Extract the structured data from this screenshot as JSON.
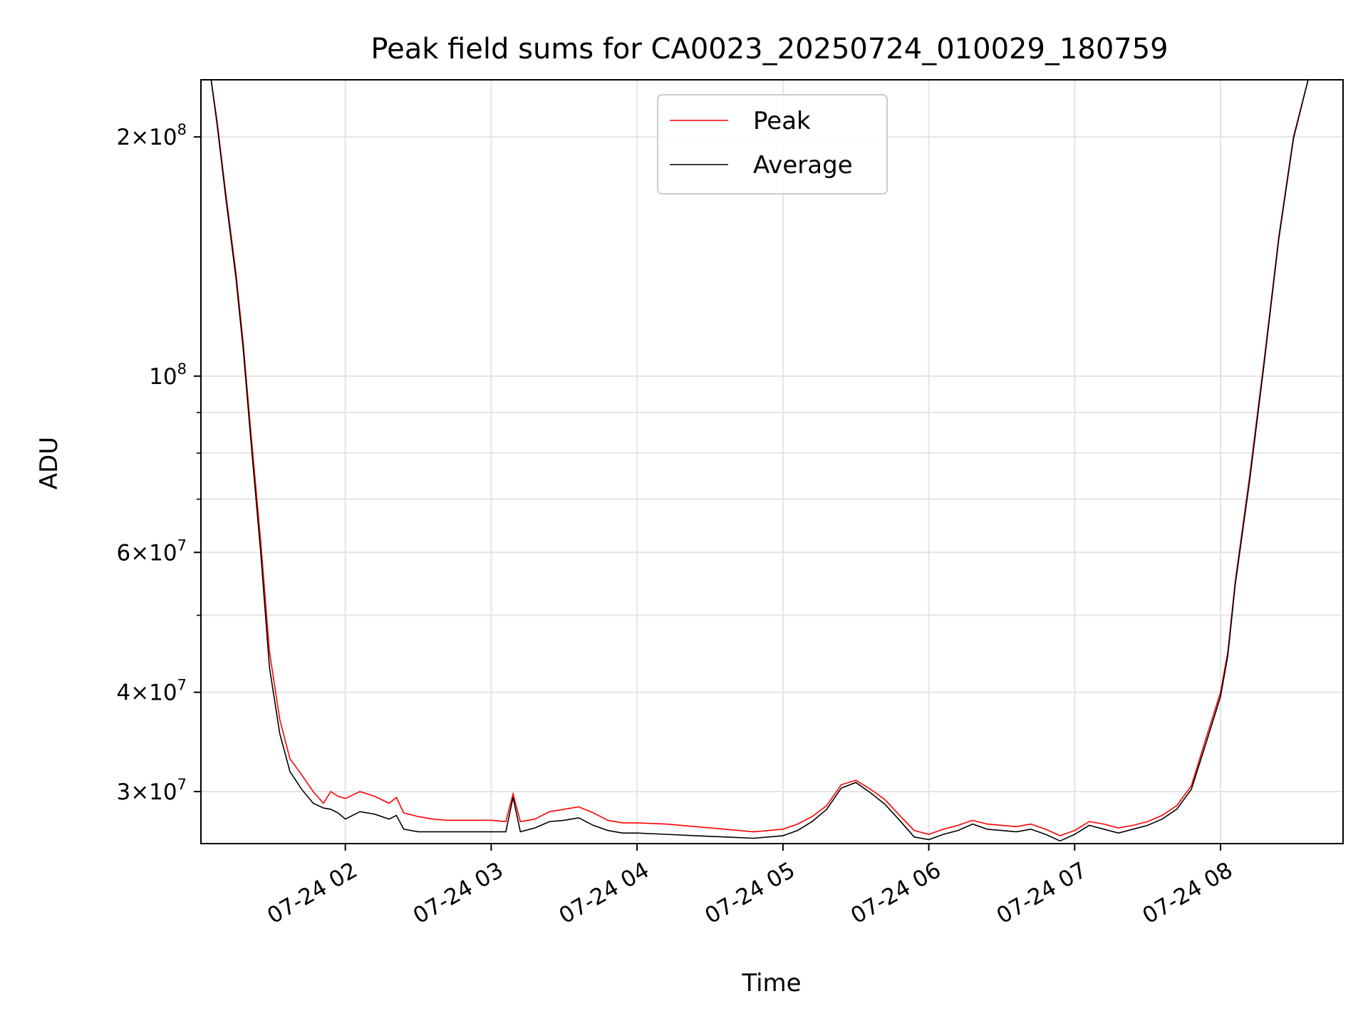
{
  "chart_data": {
    "type": "line",
    "title": "Peak field sums for CA0023_20250724_010029_180759",
    "xlabel": "Time",
    "ylabel": "ADU",
    "yscale": "log",
    "grid": true,
    "legend_position": "upper center",
    "x_ticks": [
      {
        "label": "07-24 02",
        "hour": 2.0
      },
      {
        "label": "07-24 03",
        "hour": 3.0
      },
      {
        "label": "07-24 04",
        "hour": 4.0
      },
      {
        "label": "07-24 05",
        "hour": 5.0
      },
      {
        "label": "07-24 06",
        "hour": 6.0
      },
      {
        "label": "07-24 07",
        "hour": 7.0
      },
      {
        "label": "07-24 08",
        "hour": 8.0
      }
    ],
    "y_ticks": [
      {
        "base": "3",
        "exp": "7",
        "value": 30000000
      },
      {
        "base": "4",
        "exp": "7",
        "value": 40000000
      },
      {
        "base": "6",
        "exp": "7",
        "value": 60000000
      },
      {
        "base": "",
        "exp": "8",
        "value": 100000000
      },
      {
        "base": "2",
        "exp": "8",
        "value": 200000000
      }
    ],
    "y_minor": [
      50000000,
      70000000,
      80000000,
      90000000
    ],
    "xlim": [
      1.01,
      8.84
    ],
    "ylim": [
      25800000,
      236000000
    ],
    "series": [
      {
        "name": "Peak",
        "color": "#ff0000",
        "x": [
          1.01,
          1.08,
          1.12,
          1.18,
          1.25,
          1.3,
          1.35,
          1.42,
          1.48,
          1.55,
          1.62,
          1.7,
          1.78,
          1.85,
          1.9,
          1.95,
          2.0,
          2.1,
          2.2,
          2.3,
          2.35,
          2.4,
          2.5,
          2.55,
          2.6,
          2.7,
          2.8,
          2.9,
          3.0,
          3.1,
          3.15,
          3.2,
          3.3,
          3.4,
          3.5,
          3.6,
          3.7,
          3.8,
          3.9,
          4.0,
          4.2,
          4.4,
          4.6,
          4.8,
          5.0,
          5.1,
          5.2,
          5.3,
          5.4,
          5.5,
          5.6,
          5.7,
          5.8,
          5.9,
          6.0,
          6.1,
          6.2,
          6.3,
          6.4,
          6.5,
          6.6,
          6.7,
          6.8,
          6.9,
          7.0,
          7.1,
          7.2,
          7.3,
          7.4,
          7.5,
          7.6,
          7.7,
          7.8,
          7.9,
          8.0,
          8.05,
          8.1,
          8.2,
          8.3,
          8.4,
          8.5,
          8.6,
          8.65,
          8.7,
          8.75,
          8.8,
          8.84
        ],
        "y": [
          236000000,
          236000000,
          210000000,
          170000000,
          135000000,
          110000000,
          86000000,
          62000000,
          45000000,
          37000000,
          33000000,
          31500000,
          30000000,
          29000000,
          30000000,
          29600000,
          29400000,
          30000000,
          29600000,
          29000000,
          29500000,
          28200000,
          27900000,
          27800000,
          27700000,
          27600000,
          27600000,
          27600000,
          27600000,
          27500000,
          29800000,
          27500000,
          27700000,
          28300000,
          28500000,
          28700000,
          28200000,
          27600000,
          27400000,
          27400000,
          27300000,
          27100000,
          26900000,
          26700000,
          26900000,
          27300000,
          27900000,
          28800000,
          30600000,
          31000000,
          30200000,
          29300000,
          28000000,
          26800000,
          26500000,
          26900000,
          27200000,
          27600000,
          27300000,
          27200000,
          27100000,
          27300000,
          26900000,
          26400000,
          26800000,
          27500000,
          27300000,
          27000000,
          27200000,
          27500000,
          28000000,
          28800000,
          30500000,
          35000000,
          40000000,
          45000000,
          55000000,
          75000000,
          105000000,
          150000000,
          200000000,
          236000000,
          236000000,
          236000000,
          236000000,
          236000000,
          236000000
        ]
      },
      {
        "name": "Average",
        "color": "#000000",
        "x": [
          1.01,
          1.08,
          1.12,
          1.18,
          1.25,
          1.3,
          1.35,
          1.42,
          1.48,
          1.55,
          1.62,
          1.7,
          1.78,
          1.85,
          1.9,
          1.95,
          2.0,
          2.1,
          2.2,
          2.3,
          2.35,
          2.4,
          2.5,
          2.55,
          2.6,
          2.7,
          2.8,
          2.9,
          3.0,
          3.1,
          3.15,
          3.2,
          3.3,
          3.4,
          3.5,
          3.6,
          3.7,
          3.8,
          3.9,
          4.0,
          4.2,
          4.4,
          4.6,
          4.8,
          5.0,
          5.1,
          5.2,
          5.3,
          5.4,
          5.5,
          5.6,
          5.7,
          5.8,
          5.9,
          6.0,
          6.1,
          6.2,
          6.3,
          6.4,
          6.5,
          6.6,
          6.7,
          6.8,
          6.9,
          7.0,
          7.1,
          7.2,
          7.3,
          7.4,
          7.5,
          7.6,
          7.7,
          7.8,
          7.9,
          8.0,
          8.05,
          8.1,
          8.2,
          8.3,
          8.4,
          8.5,
          8.6,
          8.65,
          8.7,
          8.75,
          8.8,
          8.84
        ],
        "y": [
          236000000,
          236000000,
          208000000,
          168000000,
          133000000,
          108000000,
          84000000,
          60000000,
          43000000,
          35500000,
          31800000,
          30200000,
          29000000,
          28600000,
          28500000,
          28200000,
          27700000,
          28300000,
          28100000,
          27700000,
          28000000,
          26900000,
          26700000,
          26700000,
          26700000,
          26700000,
          26700000,
          26700000,
          26700000,
          26700000,
          29500000,
          26700000,
          27000000,
          27500000,
          27600000,
          27800000,
          27200000,
          26800000,
          26600000,
          26600000,
          26500000,
          26400000,
          26300000,
          26200000,
          26400000,
          26800000,
          27500000,
          28500000,
          30300000,
          30800000,
          29900000,
          28900000,
          27600000,
          26300000,
          26100000,
          26500000,
          26800000,
          27300000,
          26900000,
          26800000,
          26700000,
          26900000,
          26500000,
          26000000,
          26500000,
          27200000,
          26900000,
          26600000,
          26900000,
          27200000,
          27700000,
          28500000,
          30200000,
          34500000,
          39500000,
          44500000,
          54500000,
          74000000,
          104000000,
          149000000,
          199000000,
          236000000,
          236000000,
          236000000,
          236000000,
          236000000,
          236000000
        ]
      }
    ]
  }
}
